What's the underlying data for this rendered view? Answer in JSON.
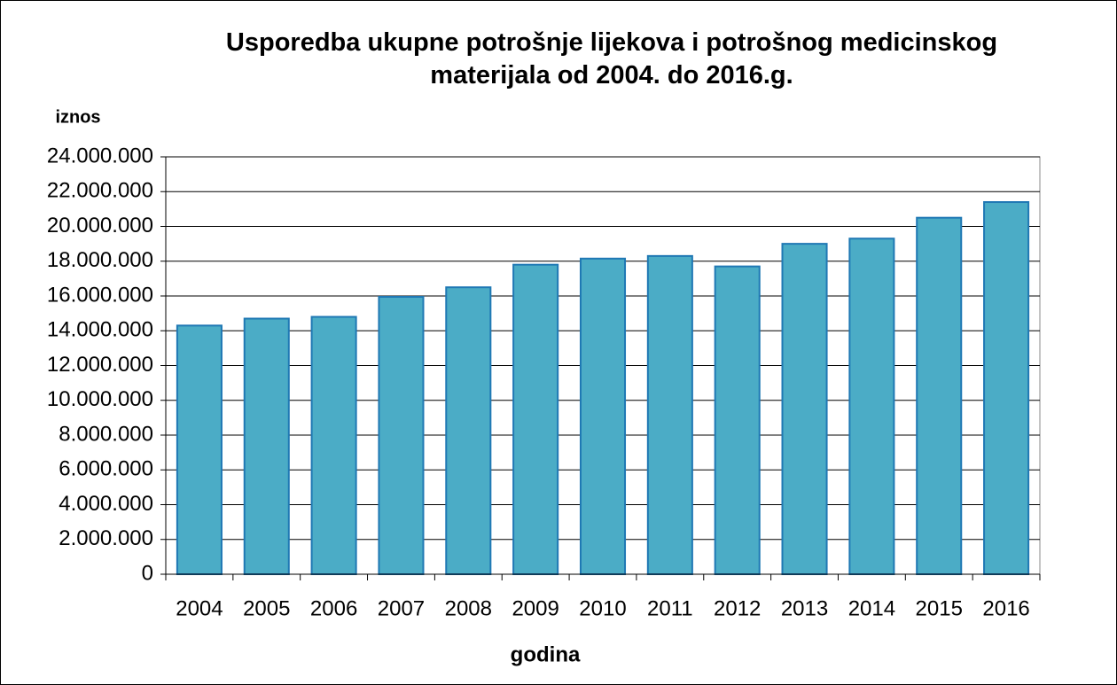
{
  "chart_data": {
    "type": "bar",
    "title": "Usporedba ukupne potrošnje lijekova i potrošnog medicinskog materijala od 2004. do 2016.g.",
    "y_label": "iznos",
    "x_label": "godina",
    "categories": [
      "2004",
      "2005",
      "2006",
      "2007",
      "2008",
      "2009",
      "2010",
      "2011",
      "2012",
      "2013",
      "2014",
      "2015",
      "2016"
    ],
    "values": [
      14300000,
      14700000,
      14800000,
      15950000,
      16500000,
      17800000,
      18150000,
      18300000,
      17700000,
      19000000,
      19300000,
      20500000,
      21400000
    ],
    "color": "#4bacc6",
    "edge_color": "#1f78b4",
    "ylim": [
      0,
      24000000
    ],
    "yticks": [
      0,
      {
        "value": 2000000,
        "label": "2.000.000"
      },
      {
        "value": 4000000,
        "label": "4.000.000"
      },
      {
        "value": 6000000,
        "label": "6.000.000"
      },
      {
        "value": 8000000,
        "label": "8.000.000"
      },
      {
        "value": 10000000,
        "label": "10.000.000"
      },
      {
        "value": 12000000,
        "label": "12.000.000"
      },
      {
        "value": 14000000,
        "label": "14.000.000"
      },
      {
        "value": 16000000,
        "label": "16.000.000"
      },
      {
        "value": 18000000,
        "label": "18.000.000"
      },
      {
        "value": 20000000,
        "label": "20.000.000"
      },
      {
        "value": 22000000,
        "label": "22.000.000"
      },
      {
        "value": 24000000,
        "label": "24.000.000"
      }
    ],
    "grid": true
  }
}
